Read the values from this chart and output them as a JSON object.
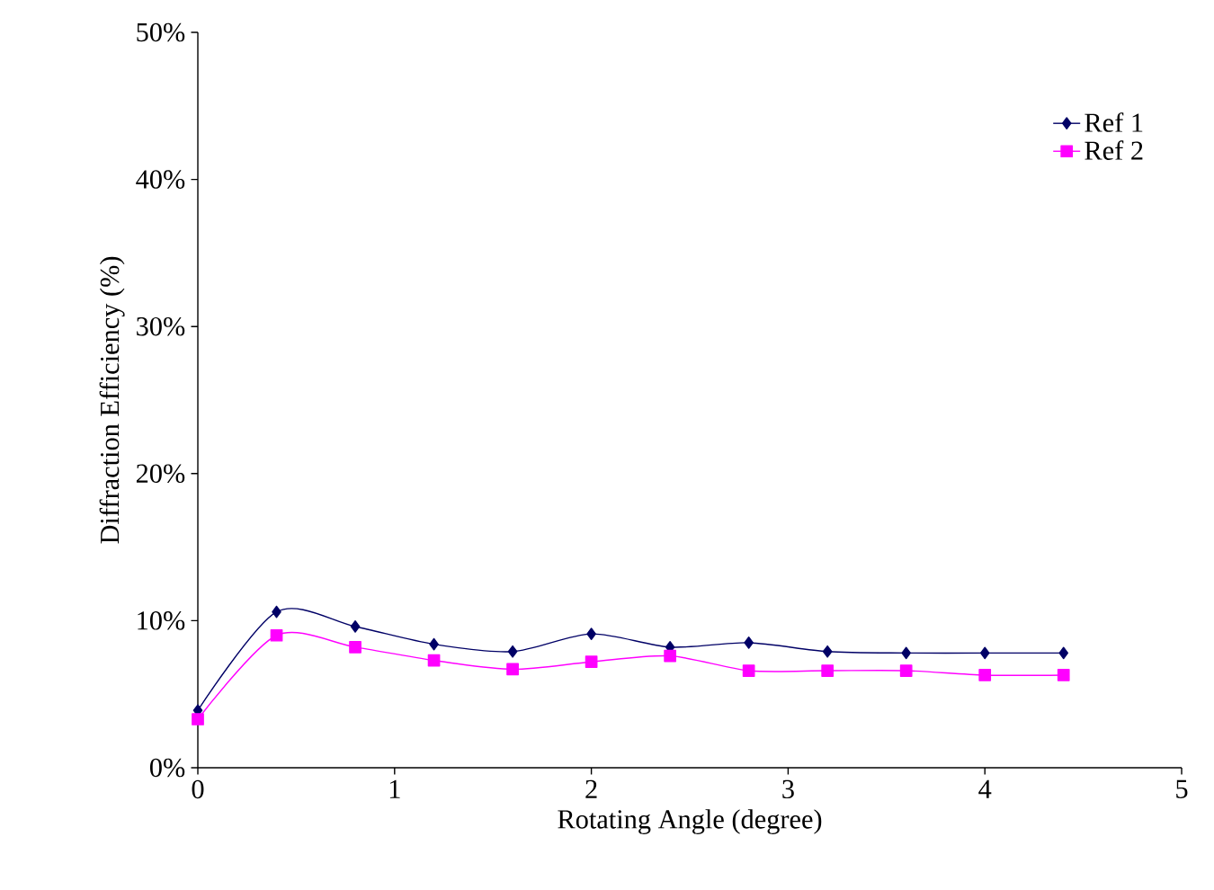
{
  "chart_data": {
    "type": "line",
    "xlabel": "Rotating Angle (degree)",
    "ylabel": "Diffraction Efficiency (%)",
    "x": [
      0,
      0.4,
      0.8,
      1.2,
      1.6,
      2.0,
      2.4,
      2.8,
      3.2,
      3.6,
      4.0,
      4.4
    ],
    "series": [
      {
        "name": "Ref 1",
        "color": "#000066",
        "marker": "diamond",
        "values": [
          3.9,
          10.6,
          9.6,
          8.4,
          7.9,
          9.1,
          8.2,
          8.5,
          7.9,
          7.8,
          7.8,
          7.8
        ]
      },
      {
        "name": "Ref 2",
        "color": "#ff00ff",
        "marker": "square",
        "values": [
          3.3,
          9.0,
          8.2,
          7.3,
          6.7,
          7.2,
          7.6,
          6.6,
          6.6,
          6.6,
          6.3,
          6.3
        ]
      }
    ],
    "xlim": [
      0,
      5
    ],
    "xticks": [
      0,
      1,
      2,
      3,
      4,
      5
    ],
    "ylim": [
      0,
      50
    ],
    "yticks": [
      {
        "value": 0,
        "label": "0%"
      },
      {
        "value": 10,
        "label": "10%"
      },
      {
        "value": 20,
        "label": "20%"
      },
      {
        "value": 30,
        "label": "30%"
      },
      {
        "value": 40,
        "label": "40%"
      },
      {
        "value": 50,
        "label": "50%"
      }
    ],
    "legend": "top right",
    "grid": false
  }
}
